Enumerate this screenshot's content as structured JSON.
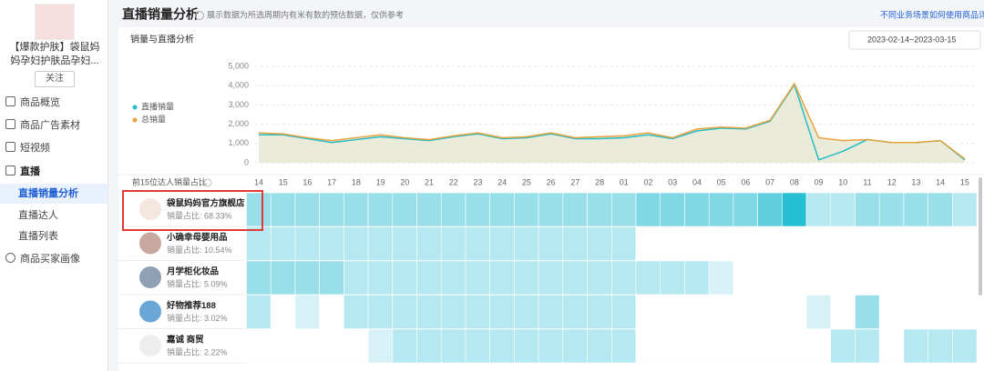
{
  "sidebar": {
    "product_title": "【爆款护肤】袋鼠妈妈孕妇护肤品孕妇...",
    "follow": "关注",
    "menu": [
      "商品概览",
      "商品广告素材",
      "短视频",
      "直播"
    ],
    "submenu": [
      "直播销量分析",
      "直播达人",
      "直播列表"
    ],
    "menu_after": [
      "商品买家画像"
    ]
  },
  "header": {
    "title": "直播销量分析",
    "note": "展示数据为所选周期内有米有数的预估数据，仅供参考",
    "link": "不同业务场景如何使用商品详情"
  },
  "card": {
    "title": "销量与直播分析",
    "date_range": "2023-02-14~2023-03-15"
  },
  "chart_data": {
    "type": "line",
    "categories": [
      "14",
      "15",
      "16",
      "17",
      "18",
      "19",
      "20",
      "21",
      "22",
      "23",
      "24",
      "25",
      "26",
      "27",
      "28",
      "01",
      "02",
      "03",
      "04",
      "05",
      "06",
      "07",
      "08",
      "09",
      "10",
      "11",
      "12",
      "13",
      "14",
      "15"
    ],
    "ylim": [
      0,
      5000
    ],
    "yticks": [
      0,
      {
        "value": 1000,
        "label": "1,000"
      },
      {
        "value": 2000,
        "label": "2,000"
      },
      {
        "value": 3000,
        "label": "3,000"
      },
      {
        "value": 4000,
        "label": "4,000"
      },
      {
        "value": 5000,
        "label": "5,000"
      }
    ],
    "grid": true,
    "series": [
      {
        "name": "直播销量",
        "color": "#26bcc9",
        "values": [
          1450,
          1450,
          1250,
          1050,
          1200,
          1350,
          1250,
          1150,
          1350,
          1500,
          1250,
          1300,
          1500,
          1250,
          1250,
          1300,
          1450,
          1250,
          1650,
          1800,
          1750,
          2150,
          4050,
          150,
          600,
          1200,
          1050,
          1050,
          1150,
          150
        ]
      },
      {
        "name": "总销量",
        "color": "#e8a33d",
        "area_color": "#e6e6cf",
        "values": [
          1550,
          1500,
          1300,
          1150,
          1300,
          1450,
          1300,
          1200,
          1400,
          1550,
          1300,
          1350,
          1550,
          1300,
          1350,
          1400,
          1550,
          1300,
          1750,
          1850,
          1800,
          2200,
          4100,
          1300,
          1150,
          1200,
          1050,
          1050,
          1150,
          200
        ]
      }
    ]
  },
  "table": {
    "header": "前15位达人销量占比",
    "level_colors": [
      "#ffffff",
      "#d6f2f6",
      "#b5e8f0",
      "#98dfea",
      "#80d8e5",
      "#62cfe0",
      "#27c0d3"
    ],
    "rows": [
      {
        "name": "袋鼠妈妈官方旗舰店",
        "share": "销量占比: 68.33%",
        "cells": [
          3,
          3,
          3,
          3,
          3,
          3,
          3,
          3,
          3,
          3,
          3,
          3,
          3,
          3,
          3,
          3,
          4,
          4,
          4,
          4,
          4,
          5,
          6,
          2,
          2,
          3,
          3,
          3,
          3,
          2
        ]
      },
      {
        "name": "小确幸母婴用品",
        "share": "销量占比: 10.54%",
        "cells": [
          2,
          2,
          2,
          2,
          2,
          2,
          2,
          2,
          2,
          2,
          2,
          2,
          2,
          2,
          2,
          2,
          0,
          0,
          0,
          0,
          0,
          0,
          0,
          0,
          0,
          0,
          0,
          0,
          0,
          0
        ]
      },
      {
        "name": "月学柜化妆品",
        "share": "销量占比: 5.09%",
        "cells": [
          3,
          3,
          3,
          3,
          2,
          2,
          2,
          2,
          2,
          2,
          2,
          2,
          2,
          2,
          2,
          2,
          2,
          2,
          2,
          1,
          0,
          0,
          0,
          0,
          0,
          0,
          0,
          0,
          0,
          0
        ]
      },
      {
        "name": "好物推荐188",
        "share": "销量占比: 3.02%",
        "cells": [
          2,
          0,
          1,
          0,
          2,
          2,
          2,
          2,
          2,
          2,
          2,
          2,
          2,
          2,
          2,
          2,
          0,
          0,
          0,
          0,
          0,
          0,
          0,
          1,
          0,
          3,
          0,
          0,
          0,
          0
        ]
      },
      {
        "name": "嘉诚 商贸",
        "share": "销量占比: 2.22%",
        "cells": [
          0,
          0,
          0,
          0,
          0,
          1,
          2,
          2,
          2,
          2,
          2,
          2,
          2,
          2,
          2,
          2,
          0,
          0,
          0,
          0,
          0,
          0,
          0,
          0,
          2,
          2,
          0,
          2,
          2,
          2
        ]
      }
    ]
  }
}
